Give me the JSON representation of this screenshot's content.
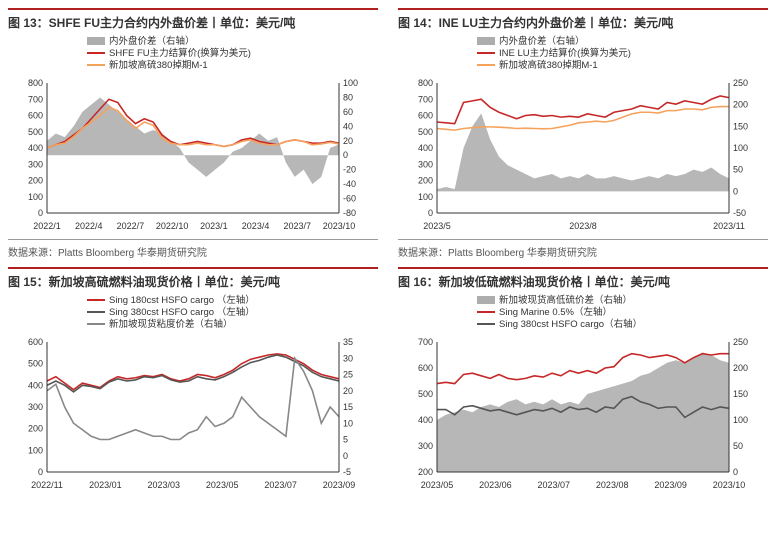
{
  "source_label": "数据来源：",
  "source_text": "Platts Bloomberg 华泰期货研究院",
  "colors": {
    "red": "#c62828",
    "orange": "#f5a25d",
    "gray_fill": "#999999",
    "gray_line": "#888888",
    "dark_gray": "#555555",
    "axis": "#333333",
    "grid": "#e8e8e8",
    "bg": "#ffffff",
    "text": "#333333"
  },
  "charts": [
    {
      "id": "c13",
      "title": "图 13：SHFE FU主力合约内外盘价差丨单位：美元/吨",
      "y_left": {
        "min": 0,
        "max": 800,
        "step": 100
      },
      "y_right": {
        "min": -80,
        "max": 100,
        "step": 20
      },
      "x_labels": [
        "2022/1",
        "2022/4",
        "2022/7",
        "2022/10",
        "2023/1",
        "2023/4",
        "2023/7",
        "2023/10"
      ],
      "legend": [
        {
          "label": "内外盘价差（右轴）",
          "type": "area",
          "color": "#999999"
        },
        {
          "label": "SHFE FU主力结算价(换算为美元)",
          "type": "line",
          "color": "#c62828"
        },
        {
          "label": "新加坡高硫380掉期M-1",
          "type": "line",
          "color": "#f5a25d"
        }
      ],
      "area": [
        20,
        30,
        25,
        40,
        60,
        70,
        80,
        70,
        60,
        50,
        40,
        30,
        35,
        30,
        20,
        10,
        -10,
        -20,
        -30,
        -20,
        -10,
        5,
        10,
        20,
        30,
        20,
        25,
        -10,
        -30,
        -20,
        -40,
        -30,
        10,
        15
      ],
      "line1": [
        400,
        420,
        440,
        480,
        520,
        580,
        640,
        700,
        680,
        600,
        550,
        580,
        560,
        480,
        440,
        420,
        430,
        440,
        430,
        420,
        410,
        420,
        450,
        460,
        440,
        430,
        420,
        440,
        450,
        440,
        430,
        430,
        440,
        430
      ],
      "line2": [
        400,
        420,
        430,
        470,
        520,
        560,
        600,
        650,
        630,
        570,
        520,
        560,
        540,
        460,
        430,
        420,
        420,
        430,
        420,
        420,
        410,
        420,
        440,
        450,
        430,
        420,
        420,
        440,
        450,
        440,
        420,
        425,
        435,
        425
      ]
    },
    {
      "id": "c14",
      "title": "图 14：INE LU主力合约内外盘价差丨单位：美元/吨",
      "y_left": {
        "min": 0,
        "max": 800,
        "step": 100
      },
      "y_right": {
        "min": -50,
        "max": 250,
        "step": 50
      },
      "x_labels": [
        "2023/5",
        "",
        "",
        "2023/8",
        "",
        "",
        "2023/11"
      ],
      "legend": [
        {
          "label": "内外盘价差（右轴）",
          "type": "area",
          "color": "#999999"
        },
        {
          "label": "INE LU主力结算价(换算为美元)",
          "type": "line",
          "color": "#c62828"
        },
        {
          "label": "新加坡高硫380掉期M-1",
          "type": "line",
          "color": "#f5a25d"
        }
      ],
      "area": [
        5,
        10,
        5,
        100,
        150,
        180,
        120,
        80,
        60,
        50,
        40,
        30,
        35,
        40,
        30,
        35,
        30,
        40,
        30,
        30,
        35,
        30,
        25,
        30,
        35,
        30,
        40,
        35,
        40,
        50,
        45,
        55,
        40,
        30
      ],
      "line1": [
        560,
        555,
        550,
        680,
        690,
        700,
        650,
        620,
        600,
        580,
        600,
        605,
        595,
        600,
        590,
        595,
        590,
        610,
        600,
        590,
        620,
        630,
        640,
        660,
        650,
        640,
        680,
        670,
        690,
        680,
        670,
        700,
        720,
        710
      ],
      "line2": [
        520,
        515,
        510,
        520,
        525,
        530,
        530,
        528,
        525,
        520,
        522,
        520,
        518,
        520,
        530,
        540,
        555,
        560,
        565,
        560,
        570,
        590,
        610,
        620,
        620,
        615,
        630,
        630,
        640,
        640,
        635,
        650,
        655,
        655
      ]
    },
    {
      "id": "c15",
      "title": "图 15：新加坡高硫燃料油现货价格丨单位：美元/吨",
      "y_left": {
        "min": 0,
        "max": 600,
        "step": 100
      },
      "y_right": {
        "min": -5,
        "max": 35,
        "step": 5
      },
      "x_labels": [
        "2022/11",
        "2023/01",
        "2023/03",
        "2023/05",
        "2023/07",
        "2023/09"
      ],
      "legend": [
        {
          "label": "Sing 180cst HSFO cargo （左轴）",
          "type": "line",
          "color": "#c62828"
        },
        {
          "label": "Sing 380cst HSFO cargo （左轴）",
          "type": "line",
          "color": "#555555"
        },
        {
          "label": "新加坡现货粘度价差（右轴）",
          "type": "line",
          "color": "#888888"
        }
      ],
      "line1": [
        420,
        440,
        410,
        380,
        410,
        400,
        390,
        420,
        440,
        430,
        435,
        445,
        440,
        450,
        430,
        420,
        430,
        450,
        445,
        435,
        450,
        470,
        500,
        520,
        530,
        540,
        545,
        540,
        520,
        500,
        470,
        450,
        440,
        430
      ],
      "line2": [
        400,
        420,
        400,
        370,
        400,
        395,
        385,
        415,
        430,
        420,
        425,
        440,
        435,
        445,
        425,
        415,
        420,
        440,
        430,
        425,
        440,
        460,
        485,
        505,
        515,
        530,
        540,
        530,
        510,
        490,
        460,
        440,
        430,
        420
      ],
      "line3": [
        20,
        22,
        15,
        10,
        8,
        6,
        5,
        5,
        6,
        7,
        8,
        7,
        6,
        6,
        5,
        5,
        7,
        8,
        12,
        9,
        10,
        12,
        18,
        15,
        12,
        10,
        8,
        6,
        30,
        26,
        20,
        10,
        15,
        12
      ]
    },
    {
      "id": "c16",
      "title": "图 16：新加坡低硫燃料油现货价格丨单位：美元/吨",
      "y_left": {
        "min": 200,
        "max": 700,
        "step": 100
      },
      "y_right": {
        "min": 0,
        "max": 250,
        "step": 50
      },
      "x_labels": [
        "2023/05",
        "2023/06",
        "2023/07",
        "2023/08",
        "2023/09",
        "2023/10"
      ],
      "legend": [
        {
          "label": "新加坡现货高低硫价差（右轴）",
          "type": "area",
          "color": "#999999"
        },
        {
          "label": "Sing Marine 0.5%（左轴）",
          "type": "line",
          "color": "#c62828"
        },
        {
          "label": "Sing 380cst HSFO cargo（右轴）",
          "type": "line",
          "color": "#555555"
        }
      ],
      "area": [
        100,
        110,
        115,
        120,
        115,
        125,
        130,
        125,
        135,
        140,
        130,
        135,
        130,
        140,
        130,
        135,
        130,
        150,
        155,
        160,
        165,
        170,
        175,
        185,
        190,
        200,
        210,
        215,
        210,
        220,
        230,
        225,
        215,
        210
      ],
      "line1": [
        540,
        545,
        540,
        575,
        580,
        570,
        560,
        575,
        560,
        555,
        560,
        570,
        565,
        580,
        570,
        590,
        580,
        590,
        580,
        600,
        605,
        640,
        655,
        650,
        640,
        645,
        650,
        640,
        620,
        640,
        655,
        650,
        655,
        655
      ],
      "line2": [
        440,
        440,
        420,
        450,
        455,
        445,
        435,
        440,
        430,
        420,
        430,
        440,
        435,
        445,
        430,
        450,
        440,
        445,
        430,
        450,
        445,
        480,
        490,
        470,
        460,
        445,
        450,
        450,
        410,
        430,
        450,
        440,
        450,
        445
      ]
    }
  ]
}
